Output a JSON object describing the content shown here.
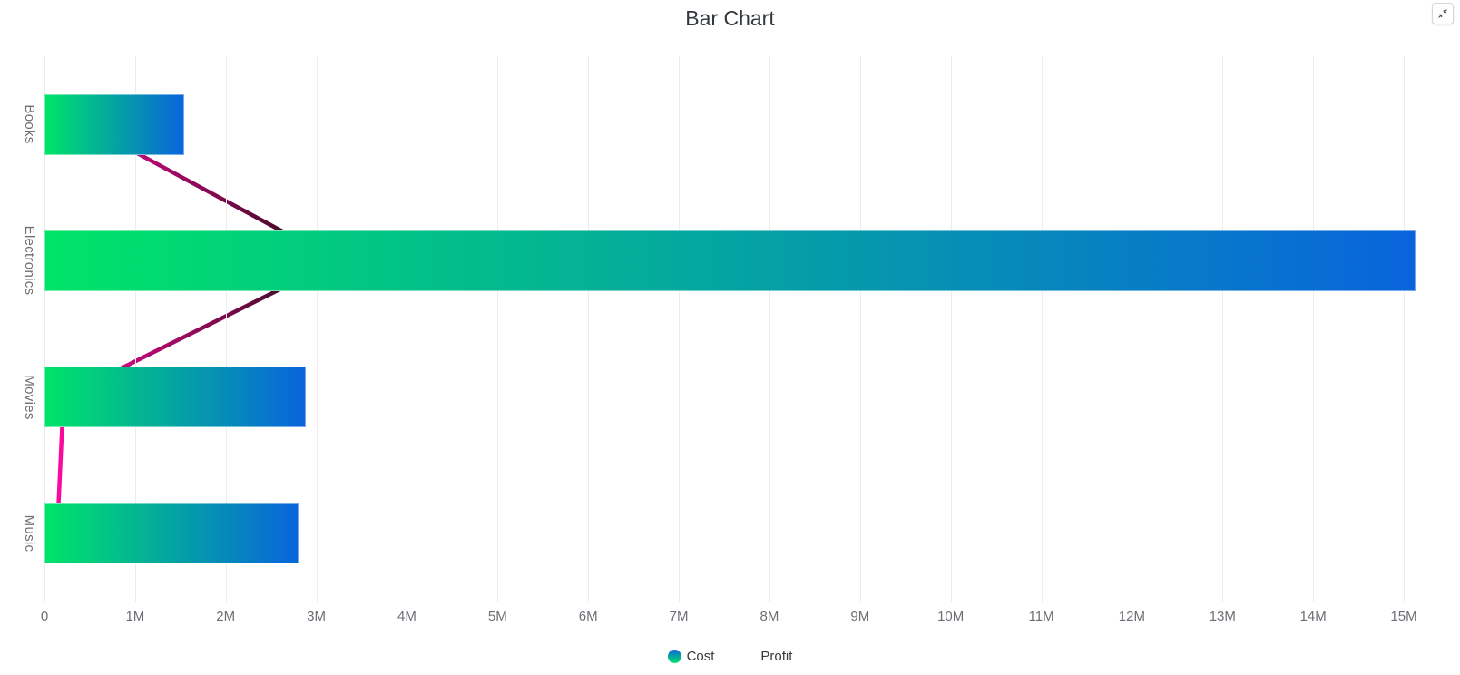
{
  "chart_data": {
    "type": "bar",
    "orientation": "horizontal",
    "title": "Bar Chart",
    "categories": [
      "Books",
      "Electronics",
      "Movies",
      "Music"
    ],
    "series": [
      {
        "name": "Cost",
        "type": "bar",
        "values": [
          1540000,
          15130000,
          2880000,
          2800000
        ]
      },
      {
        "name": "Profit",
        "type": "line",
        "values": [
          430000,
          3230000,
          210000,
          140000
        ]
      }
    ],
    "x_ticks": [
      "0",
      "1M",
      "2M",
      "3M",
      "4M",
      "5M",
      "6M",
      "7M",
      "8M",
      "9M",
      "10M",
      "11M",
      "12M",
      "13M",
      "14M",
      "15M"
    ],
    "xlim": [
      0,
      15000000
    ],
    "grid": "vertical-gridlines-only",
    "legend_position": "bottom",
    "colors": {
      "bar_gradient_start": "#00e468",
      "bar_gradient_end": "#0964dc",
      "line_gradient_start": "#fb0a9d",
      "line_gradient_end": "#200a12",
      "grid_line": "#ececec",
      "axis_label": "#6b7076",
      "title": "#33383e"
    }
  },
  "controls": {
    "resize_icon": "diagonal-collapse-arrows"
  }
}
